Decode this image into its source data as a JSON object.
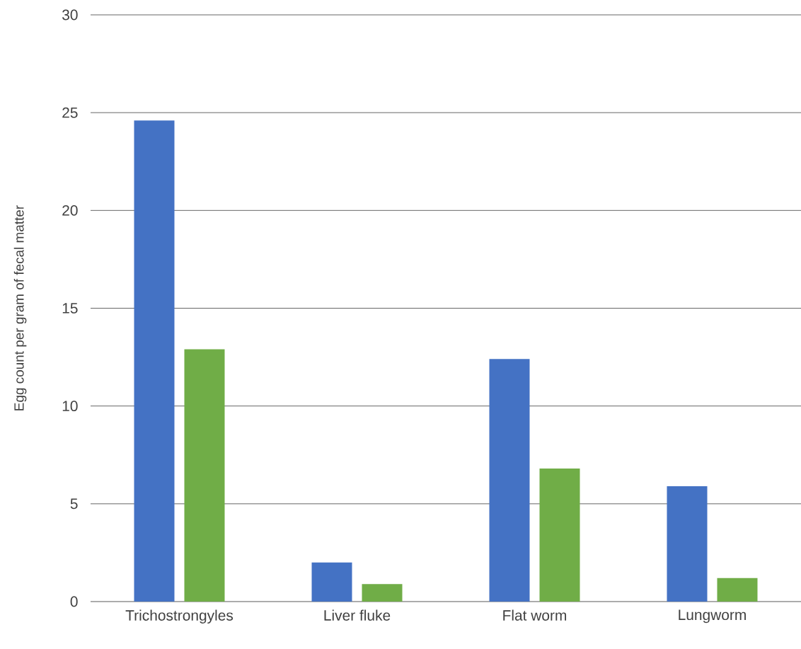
{
  "chart_data": {
    "type": "bar",
    "ylabel": "Egg count per gram of fecal matter",
    "categories": [
      "Trichostrongyles",
      "Liver fluke",
      "Flat worm",
      "Lungworm"
    ],
    "series": [
      {
        "color": "#4472c4",
        "values": [
          24.6,
          2.0,
          12.4,
          5.9
        ]
      },
      {
        "color": "#70ad47",
        "values": [
          12.9,
          0.9,
          6.8,
          1.2
        ]
      }
    ],
    "ylim": [
      0,
      30
    ],
    "yticks": [
      0,
      5,
      10,
      15,
      20,
      25,
      30
    ],
    "grid": "y"
  }
}
